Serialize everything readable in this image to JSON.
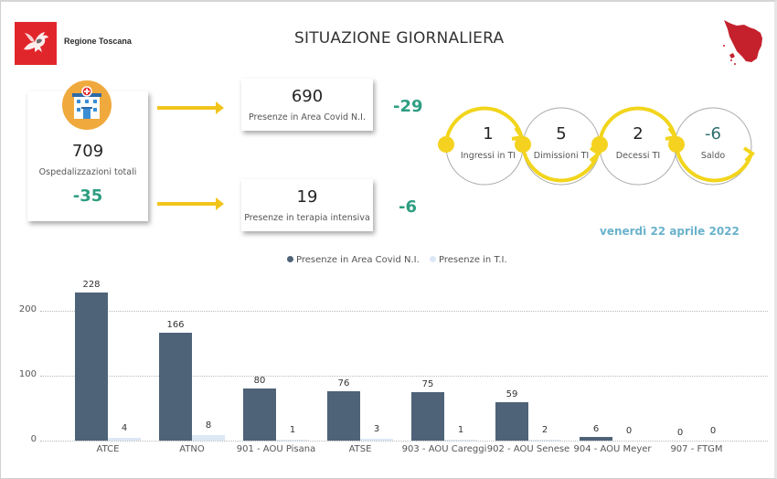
{
  "header": {
    "brand": "Regione Toscana",
    "title": "SITUAZIONE GIORNALIERA",
    "logo_icon": "pegasus-logo-icon",
    "map_icon": "tuscany-map-icon"
  },
  "colors": {
    "accent_yellow": "#f2c51c",
    "delta_green": "#2e9e82",
    "date_blue": "#6ab2cc",
    "bar_dark": "#4f6378",
    "bar_light": "#dce8f4",
    "logo_red": "#e1262b",
    "map_red": "#c4212d"
  },
  "totals": {
    "value": "709",
    "label": "Ospedalizzazioni totali",
    "delta": "-35",
    "icon": "hospital-icon"
  },
  "covid_area": {
    "value": "690",
    "label": "Presenze in Area Covid N.I.",
    "delta": "-29"
  },
  "intensive_care": {
    "value": "19",
    "label": "Presenze in terapia intensiva",
    "delta": "-6"
  },
  "flow": [
    {
      "value": "1",
      "label": "Ingressi in TI"
    },
    {
      "value": "5",
      "label": "Dimissioni TI"
    },
    {
      "value": "2",
      "label": "Decessi TI"
    },
    {
      "value": "-6",
      "label": "Saldo"
    }
  ],
  "date": "venerdì 22 aprile 2022",
  "legend": {
    "series1": "Presenze in Area Covid N.I.",
    "series2": "Presenze in T.I."
  },
  "chart_data": {
    "type": "bar",
    "title": "",
    "xlabel": "",
    "ylabel": "",
    "ylim": [
      0,
      240
    ],
    "y_ticks": [
      "0",
      "100",
      "200"
    ],
    "grid": true,
    "legend_position": "top",
    "categories": [
      "ATCE",
      "ATNO",
      "901 - AOU Pisana",
      "ATSE",
      "903 - AOU Careggi",
      "902 - AOU Senese",
      "904 - AOU Meyer",
      "907 - FTGM"
    ],
    "series": [
      {
        "name": "Presenze in Area Covid N.I.",
        "values": [
          228,
          166,
          80,
          76,
          75,
          59,
          6,
          0
        ]
      },
      {
        "name": "Presenze in T.I.",
        "values": [
          4,
          8,
          1,
          3,
          1,
          2,
          0,
          0
        ]
      }
    ]
  }
}
